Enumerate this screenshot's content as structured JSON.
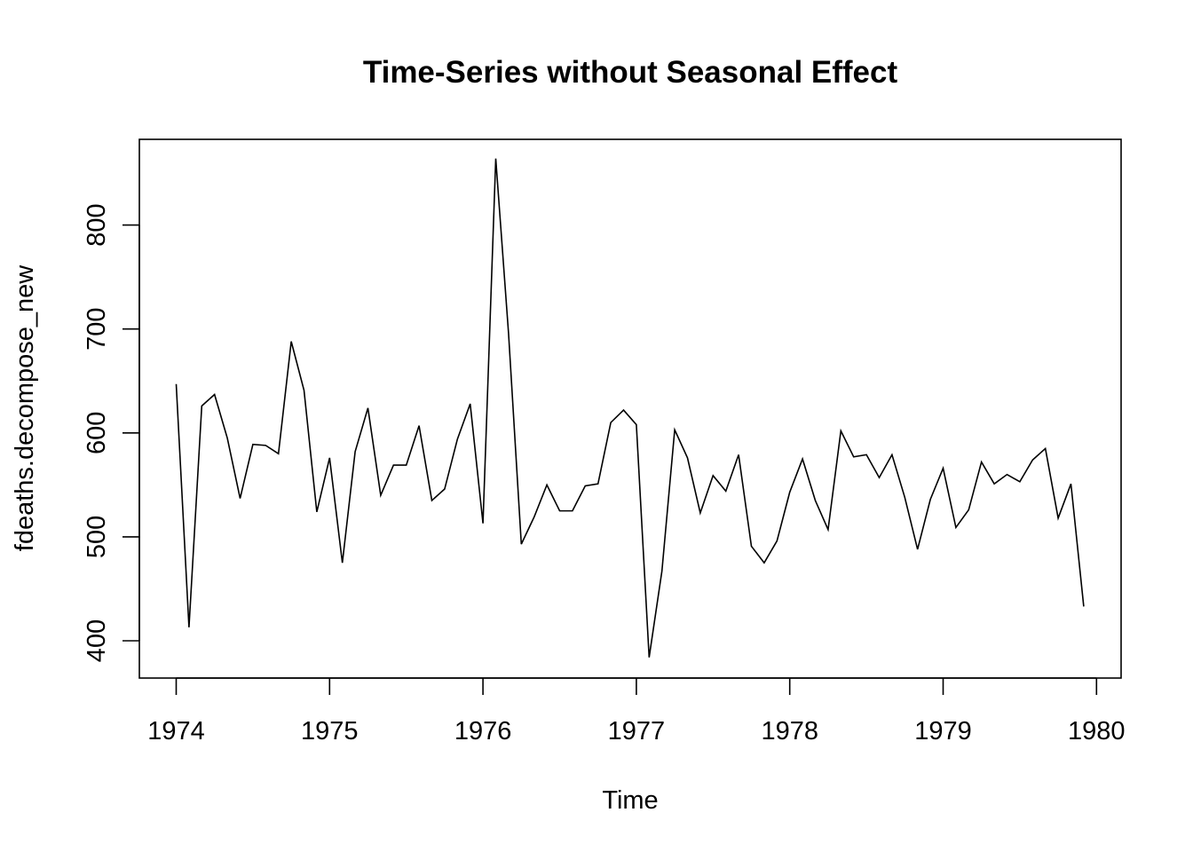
{
  "chart_data": {
    "type": "line",
    "title": "Time-Series without Seasonal Effect",
    "xlabel": "Time",
    "ylabel": "fdeaths.decompose_new",
    "xlim": [
      1974,
      1980
    ],
    "ylim": [
      370,
      870
    ],
    "x_ticks": [
      1974,
      1975,
      1976,
      1977,
      1978,
      1979,
      1980
    ],
    "y_ticks": [
      400,
      500,
      600,
      700,
      800
    ],
    "grid": false,
    "legend": "none",
    "start": 1974,
    "frequency": 12,
    "series": [
      {
        "values": [
          647,
          413,
          626,
          637,
          595,
          537,
          589,
          588,
          580,
          688,
          641,
          524,
          576,
          475,
          582,
          624,
          540,
          569,
          569,
          607,
          535,
          546,
          594,
          628,
          513,
          864,
          696,
          493,
          519,
          550,
          525,
          525,
          549,
          551,
          610,
          622,
          608,
          384,
          467,
          603,
          576,
          523,
          559,
          544,
          579,
          491,
          475,
          496,
          543,
          575,
          535,
          507,
          602,
          577,
          579,
          557,
          579,
          538,
          488,
          536,
          566,
          509,
          526,
          572,
          551,
          560,
          553,
          574,
          585,
          518,
          551,
          433
        ]
      }
    ]
  }
}
